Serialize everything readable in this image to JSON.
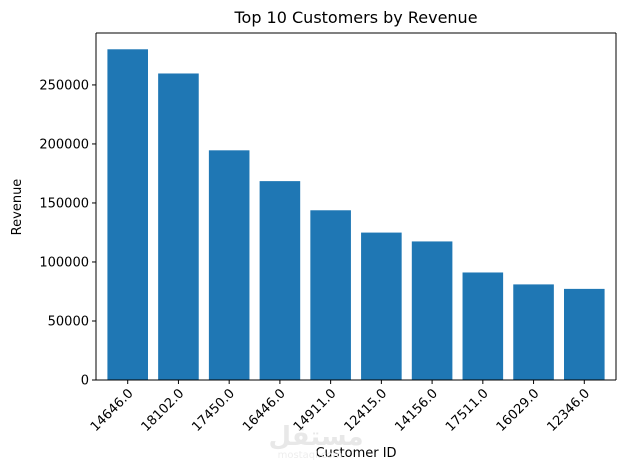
{
  "chart_data": {
    "type": "bar",
    "title": "Top 10 Customers by Revenue",
    "xlabel": "Customer ID",
    "ylabel": "Revenue",
    "categories": [
      "14646.0",
      "18102.0",
      "17450.0",
      "16446.0",
      "14911.0",
      "12415.0",
      "14156.0",
      "17511.0",
      "16029.0",
      "12346.0"
    ],
    "values": [
      280200,
      259700,
      194600,
      168500,
      143800,
      124900,
      117400,
      91100,
      81000,
      77200
    ],
    "ylim": [
      0,
      294000
    ],
    "yticks": [
      0,
      50000,
      100000,
      150000,
      200000,
      250000
    ],
    "bar_color": "#1f77b4",
    "grid": false,
    "legend": "none"
  },
  "watermark": {
    "logo_text": "مستقل",
    "site_text": "mostaql.com"
  }
}
